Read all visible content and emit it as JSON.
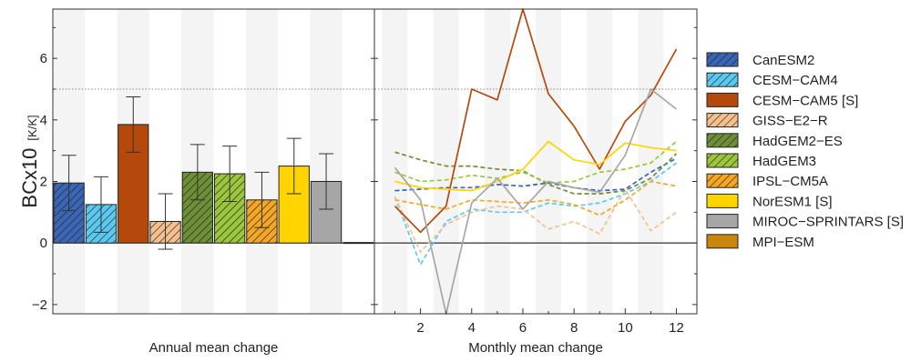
{
  "chart_data": {
    "type": "bar",
    "ylabel": "BCx10",
    "ylabel_unit": "[K/K]",
    "ylim": [
      -2.3,
      7.6
    ],
    "yticks": [
      -2,
      0,
      2,
      4,
      6
    ],
    "reference_line": 5,
    "panels": [
      {
        "name": "annual",
        "type": "bar",
        "xlabel": "Annual mean change"
      },
      {
        "name": "monthly",
        "type": "line",
        "xlabel": "Monthly mean change",
        "xticks": [
          2,
          4,
          6,
          8,
          10,
          12
        ],
        "xlim": [
          0.2,
          12.8
        ]
      }
    ],
    "models": [
      {
        "name": "CanESM2",
        "color": "#3a66b5",
        "hatch": "diag",
        "linestyle": "dashed",
        "annual": 1.95,
        "error": 0.9,
        "monthly": [
          1.7,
          1.75,
          1.8,
          1.8,
          1.9,
          1.85,
          1.95,
          1.8,
          1.7,
          1.75,
          2.3,
          2.75
        ]
      },
      {
        "name": "CESM−CAM4",
        "color": "#5bc8f0",
        "hatch": "diag",
        "linestyle": "dashed",
        "annual": 1.25,
        "error": 0.9,
        "monthly": [
          1.5,
          -0.7,
          0.7,
          1.1,
          1.0,
          1.0,
          1.3,
          1.2,
          1.3,
          1.6,
          2.0,
          2.6
        ]
      },
      {
        "name": "CESM−CAM5 [S]",
        "color": "#b5490c",
        "hatch": "none",
        "linestyle": "solid",
        "annual": 3.85,
        "error": 0.9,
        "monthly": [
          1.2,
          0.35,
          1.2,
          5.0,
          4.65,
          7.6,
          4.85,
          3.8,
          2.4,
          3.95,
          4.8,
          6.3
        ]
      },
      {
        "name": "GISS−E2−R",
        "color": "#f5c08e",
        "hatch": "diag",
        "linestyle": "dashed",
        "annual": 0.7,
        "error": 0.9,
        "monthly": [
          1.5,
          -0.3,
          0.6,
          1.0,
          1.2,
          1.1,
          0.45,
          0.7,
          0.3,
          1.75,
          0.4,
          1.0
        ]
      },
      {
        "name": "HadGEM2−ES",
        "color": "#6e8f36",
        "hatch": "diag",
        "linestyle": "dashed",
        "annual": 2.3,
        "error": 0.9,
        "monthly": [
          2.95,
          2.7,
          2.5,
          2.5,
          2.4,
          2.35,
          1.9,
          1.6,
          1.6,
          1.7,
          2.1,
          2.9
        ]
      },
      {
        "name": "HadGEM3",
        "color": "#9cc63c",
        "hatch": "diag",
        "linestyle": "dashed",
        "annual": 2.25,
        "error": 0.9,
        "monthly": [
          2.3,
          2.0,
          2.05,
          2.2,
          2.1,
          2.3,
          1.95,
          2.0,
          2.3,
          2.4,
          2.6,
          3.3
        ]
      },
      {
        "name": "IPSL−CM5A",
        "color": "#f5a623",
        "hatch": "diag",
        "linestyle": "dashed",
        "annual": 1.4,
        "error": 0.9,
        "monthly": [
          1.4,
          1.25,
          1.1,
          1.4,
          1.35,
          1.3,
          1.4,
          1.25,
          0.9,
          1.4,
          2.0,
          1.85
        ]
      },
      {
        "name": "NorESM1 [S]",
        "color": "#ffd400",
        "hatch": "none",
        "linestyle": "solid",
        "annual": 2.5,
        "error": 0.9,
        "monthly": [
          2.0,
          1.8,
          1.75,
          1.7,
          2.0,
          2.4,
          3.3,
          2.7,
          2.55,
          3.25,
          3.1,
          3.0
        ]
      },
      {
        "name": "MIROC−SPRINTARS [S]",
        "color": "#a6a6a6",
        "hatch": "none",
        "linestyle": "solid",
        "annual": 2.0,
        "error": 0.9,
        "monthly": [
          2.45,
          1.4,
          -2.3,
          1.3,
          2.1,
          1.1,
          2.0,
          1.8,
          1.65,
          2.85,
          5.0,
          4.35
        ]
      },
      {
        "name": "MPI−ESM",
        "color": "#c9860e",
        "hatch": "none",
        "linestyle": "none",
        "annual": 0.0,
        "error": 0,
        "monthly": []
      }
    ]
  }
}
